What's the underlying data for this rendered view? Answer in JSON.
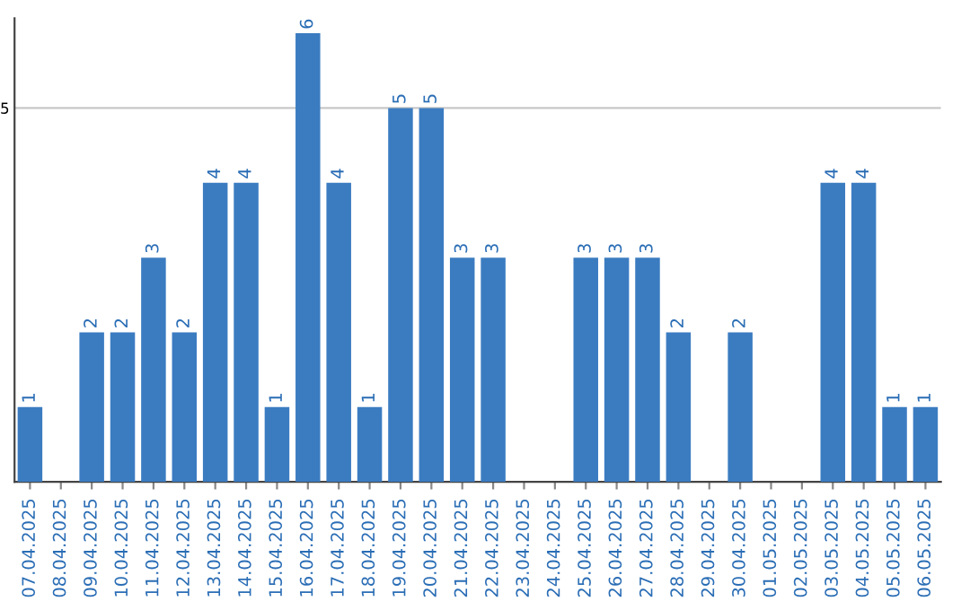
{
  "chart_data": {
    "type": "bar",
    "categories": [
      "07.04.2025",
      "08.04.2025",
      "09.04.2025",
      "10.04.2025",
      "11.04.2025",
      "12.04.2025",
      "13.04.2025",
      "14.04.2025",
      "15.04.2025",
      "16.04.2025",
      "17.04.2025",
      "18.04.2025",
      "19.04.2025",
      "20.04.2025",
      "21.04.2025",
      "22.04.2025",
      "23.04.2025",
      "24.04.2025",
      "25.04.2025",
      "26.04.2025",
      "27.04.2025",
      "28.04.2025",
      "29.04.2025",
      "30.04.2025",
      "01.05.2025",
      "02.05.2025",
      "03.05.2025",
      "04.05.2025",
      "05.05.2025",
      "06.05.2025"
    ],
    "values": [
      1,
      0,
      2,
      2,
      3,
      2,
      4,
      4,
      1,
      6,
      4,
      1,
      5,
      5,
      3,
      3,
      0,
      0,
      3,
      3,
      3,
      2,
      0,
      2,
      0,
      0,
      4,
      4,
      1,
      1
    ],
    "value_labels": [
      "1",
      null,
      "2",
      "2",
      "3",
      "2",
      "4",
      "4",
      "1",
      "6",
      "4",
      "1",
      "5",
      "5",
      "3",
      "3",
      null,
      null,
      "3",
      "3",
      "3",
      "2",
      null,
      "2",
      null,
      null,
      "4",
      "4",
      "1",
      "1"
    ],
    "color": "#3b7cc1",
    "ylim": [
      0,
      6.2
    ],
    "yticks": [
      5
    ],
    "grid": "y"
  }
}
